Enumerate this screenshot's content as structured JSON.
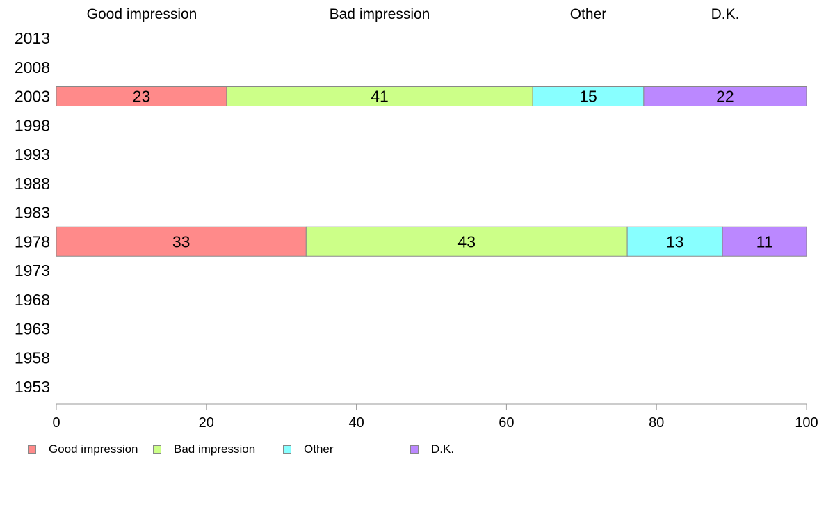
{
  "chart_data": {
    "type": "bar",
    "orientation": "horizontal",
    "stacked": true,
    "categories": [
      "2013",
      "2008",
      "2003",
      "1998",
      "1993",
      "1988",
      "1983",
      "1978",
      "1973",
      "1968",
      "1963",
      "1958",
      "1953"
    ],
    "series": [
      {
        "name": "Good impression",
        "color": "#ff8a8a",
        "values": [
          null,
          null,
          23,
          null,
          null,
          null,
          null,
          33,
          null,
          null,
          null,
          null,
          null
        ]
      },
      {
        "name": "Bad impression",
        "color": "#ccff88",
        "values": [
          null,
          null,
          41,
          null,
          null,
          null,
          null,
          43,
          null,
          null,
          null,
          null,
          null
        ]
      },
      {
        "name": "Other",
        "color": "#88ffff",
        "values": [
          null,
          null,
          15,
          null,
          null,
          null,
          null,
          13,
          null,
          null,
          null,
          null,
          null
        ]
      },
      {
        "name": "D.K.",
        "color": "#bb88ff",
        "values": [
          null,
          null,
          22,
          null,
          null,
          null,
          null,
          11,
          null,
          null,
          null,
          null,
          null
        ]
      }
    ],
    "bar_extents": {
      "2003": [
        0,
        22.7,
        63.5,
        78.3,
        100
      ],
      "1978": [
        0,
        33.3,
        76.1,
        88.8,
        100
      ]
    },
    "xlim": [
      0,
      100
    ],
    "xticks": [
      "0",
      "20",
      "40",
      "60",
      "80",
      "100"
    ],
    "top_labels": [
      "Good impression",
      "Bad impression",
      "Other",
      "D.K."
    ],
    "grid": false,
    "legend_position": "bottom-left"
  }
}
